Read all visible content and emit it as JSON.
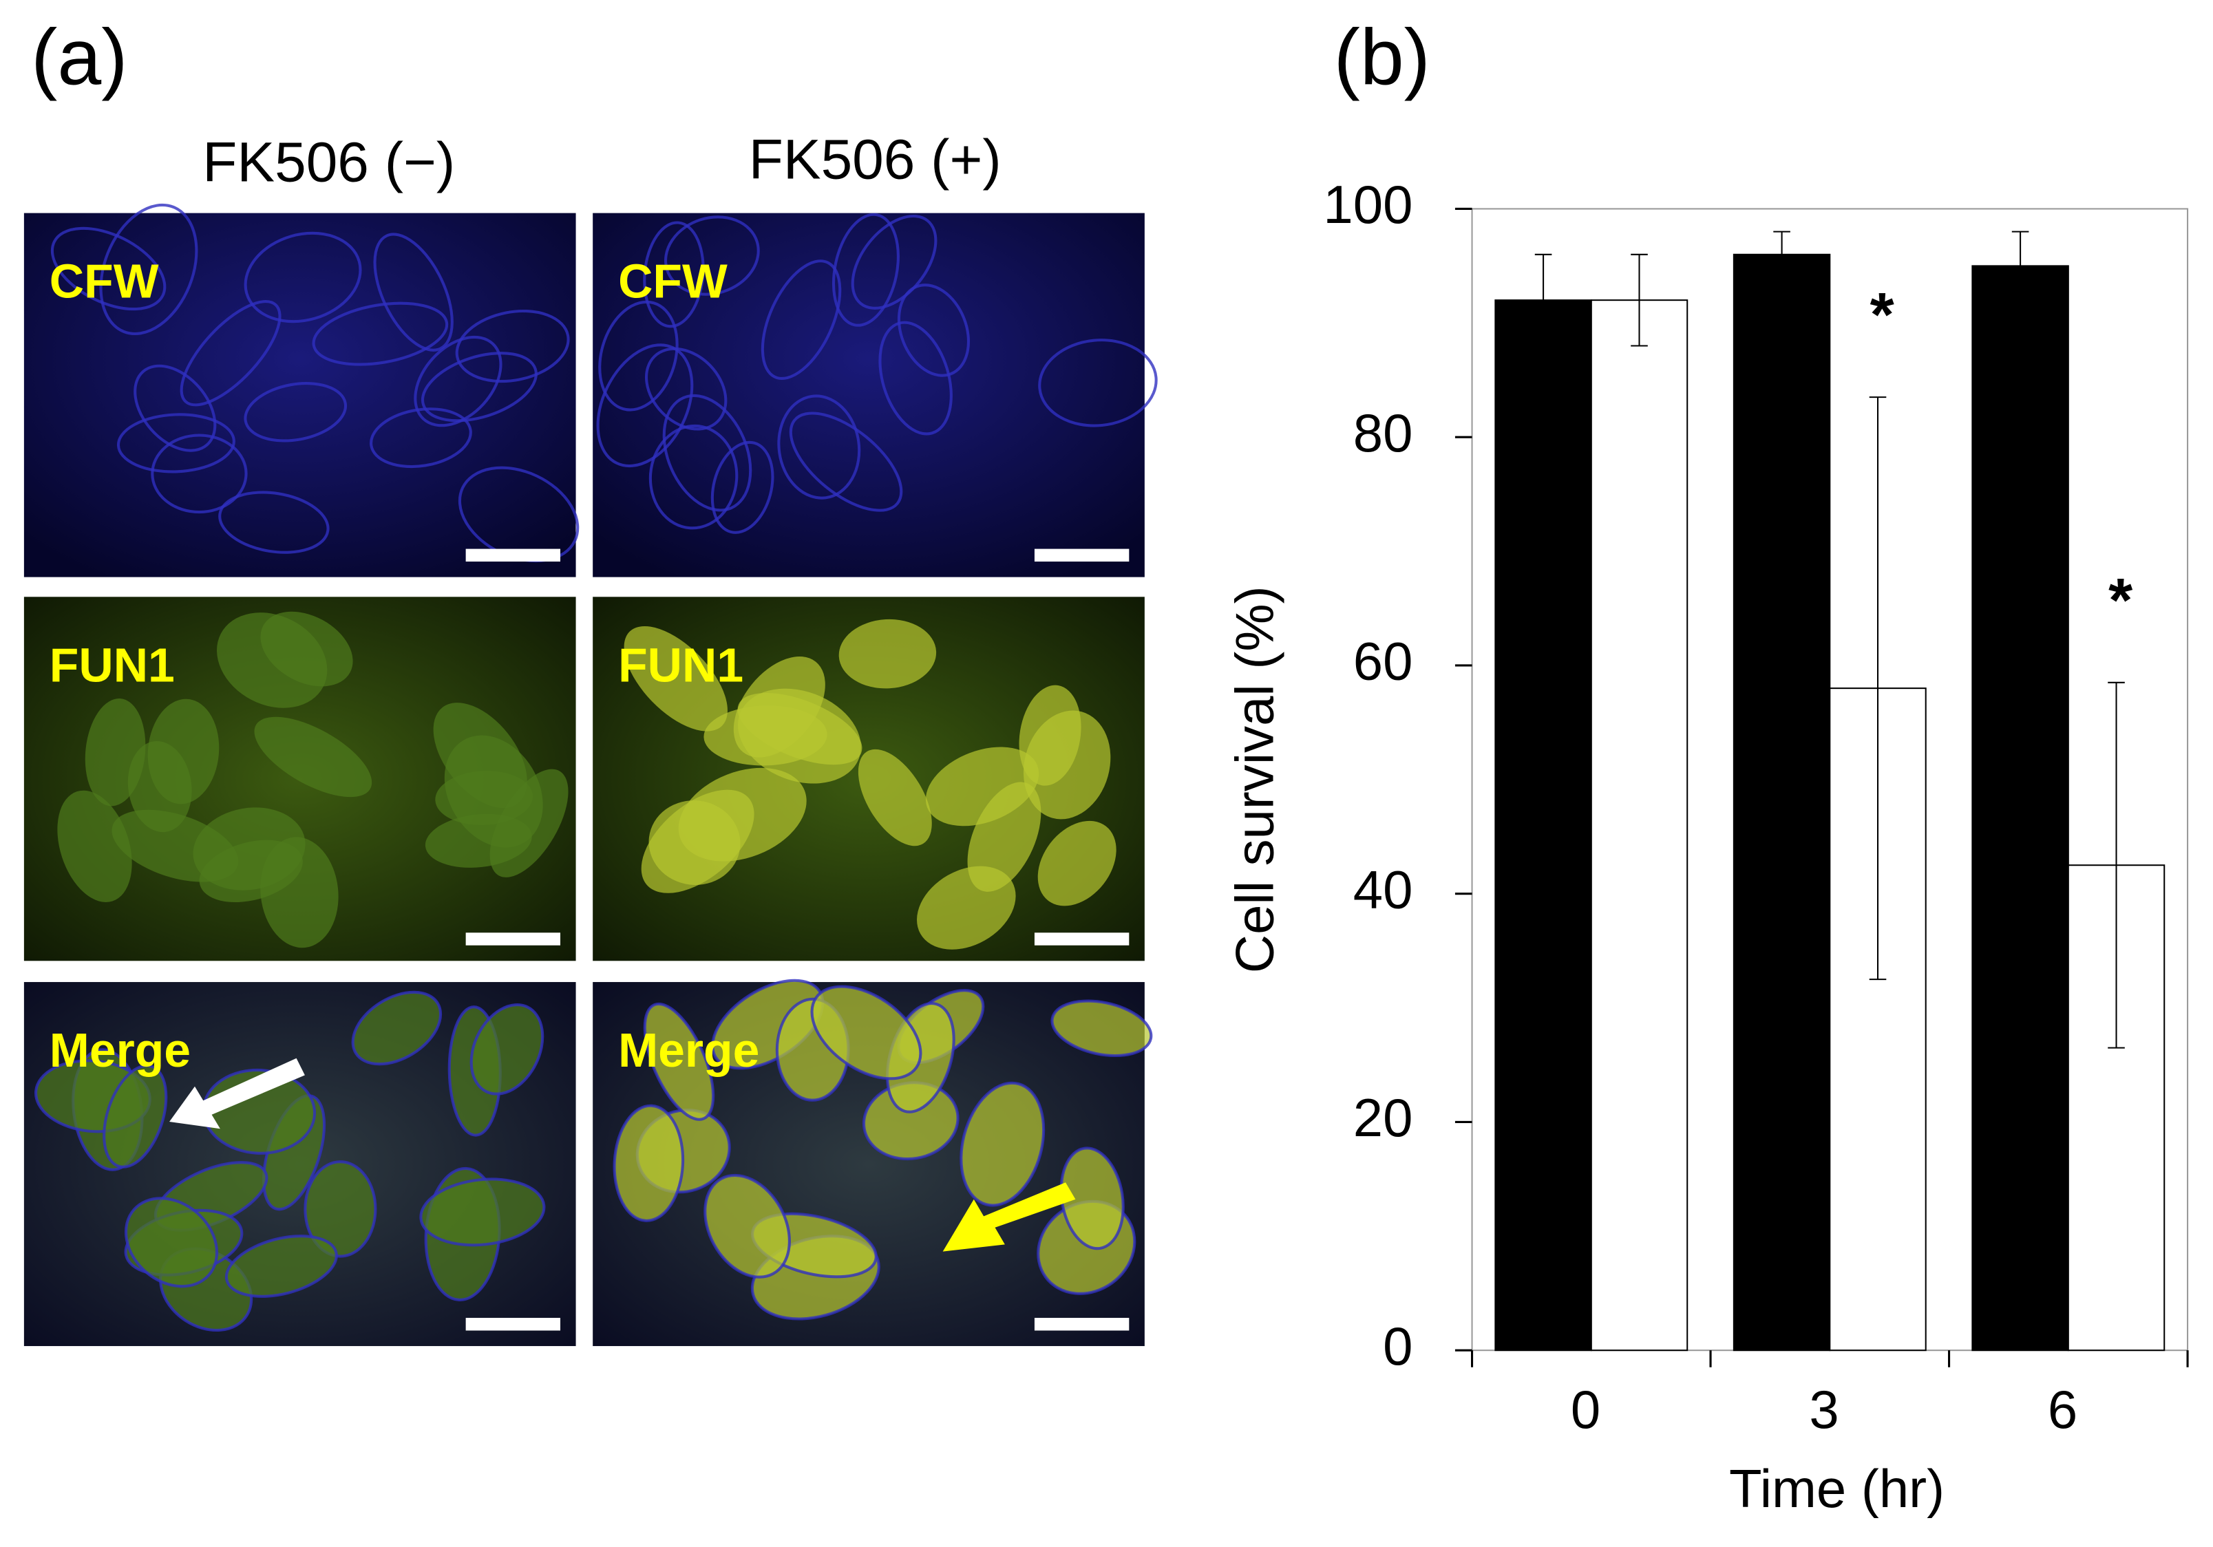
{
  "panel_a": {
    "label": "(a)",
    "columns": [
      "FK506 (−)",
      "FK506 (+)"
    ],
    "rows": [
      [
        "CFW",
        "CFW"
      ],
      [
        "FUN1",
        "FUN1"
      ],
      [
        "Merge",
        "Merge"
      ]
    ]
  },
  "chart_data": {
    "type": "bar",
    "panel_label": "(b)",
    "x_label": "Time (hr)",
    "y_label": "Cell survival (%)",
    "categories": [
      "0",
      "3",
      "6"
    ],
    "series": [
      {
        "color": "#000000",
        "values": [
          92,
          96,
          95
        ],
        "errors": [
          4,
          2,
          3
        ]
      },
      {
        "color": "#ffffff",
        "values": [
          92,
          58,
          42.5
        ],
        "errors": [
          4,
          25.5,
          16
        ]
      }
    ],
    "annotations": [
      "*",
      "*"
    ],
    "ylim": [
      0,
      100
    ],
    "yticks": [
      0,
      20,
      40,
      60,
      80,
      100
    ]
  }
}
